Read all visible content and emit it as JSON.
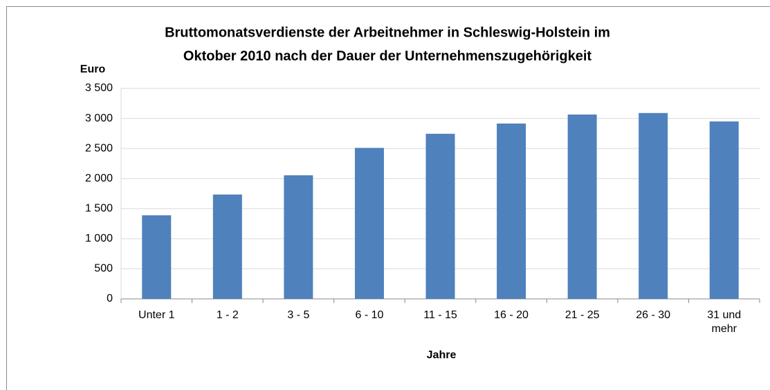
{
  "chart_data": {
    "type": "bar",
    "title": [
      "Bruttomonatsverdienste der Arbeitnehmer in Schleswig-Holstein im",
      "Oktober 2010 nach der Dauer der Unternehmenszugehörigkeit"
    ],
    "y_label": "Euro",
    "x_label": "Jahre",
    "categories": [
      "Unter 1",
      "1 -  2",
      "3 -  5",
      "6 - 10",
      "11 - 15",
      "16 - 20",
      "21 - 25",
      "26 - 30",
      "31 und mehr"
    ],
    "values": [
      1390,
      1735,
      2055,
      2510,
      2745,
      2915,
      3065,
      3090,
      2950
    ],
    "color": "#4f81bd",
    "ylim": [
      0,
      3500
    ],
    "yticks": [
      0,
      500,
      {
        "value": 1000,
        "label": "1 000"
      },
      {
        "value": 1500,
        "label": "1 500"
      },
      {
        "value": 2000,
        "label": "2 000"
      },
      {
        "value": 2500,
        "label": "2 500"
      },
      {
        "value": 3000,
        "label": "3 000"
      },
      {
        "value": 3500,
        "label": "3 500"
      }
    ],
    "grid": true
  }
}
